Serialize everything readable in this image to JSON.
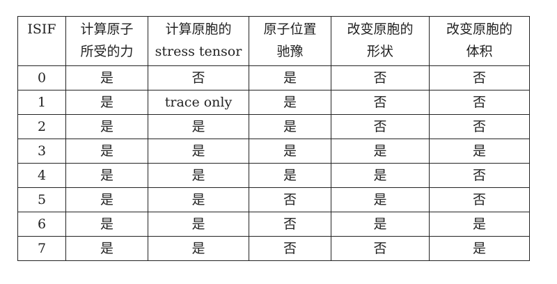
{
  "table": {
    "headers": [
      [
        "ISIF"
      ],
      [
        "计算原子",
        "所受的力"
      ],
      [
        "计算原胞的",
        "stress tensor"
      ],
      [
        "原子位置",
        "驰豫"
      ],
      [
        "改变原胞的",
        "形状"
      ],
      [
        "改变原胞的",
        "体积"
      ]
    ],
    "rows": [
      [
        "0",
        "是",
        "否",
        "是",
        "否",
        "否"
      ],
      [
        "1",
        "是",
        "trace only",
        "是",
        "否",
        "否"
      ],
      [
        "2",
        "是",
        "是",
        "是",
        "否",
        "否"
      ],
      [
        "3",
        "是",
        "是",
        "是",
        "是",
        "是"
      ],
      [
        "4",
        "是",
        "是",
        "是",
        "是",
        "否"
      ],
      [
        "5",
        "是",
        "是",
        "否",
        "是",
        "否"
      ],
      [
        "6",
        "是",
        "是",
        "否",
        "是",
        "是"
      ],
      [
        "7",
        "是",
        "是",
        "否",
        "否",
        "是"
      ]
    ]
  }
}
